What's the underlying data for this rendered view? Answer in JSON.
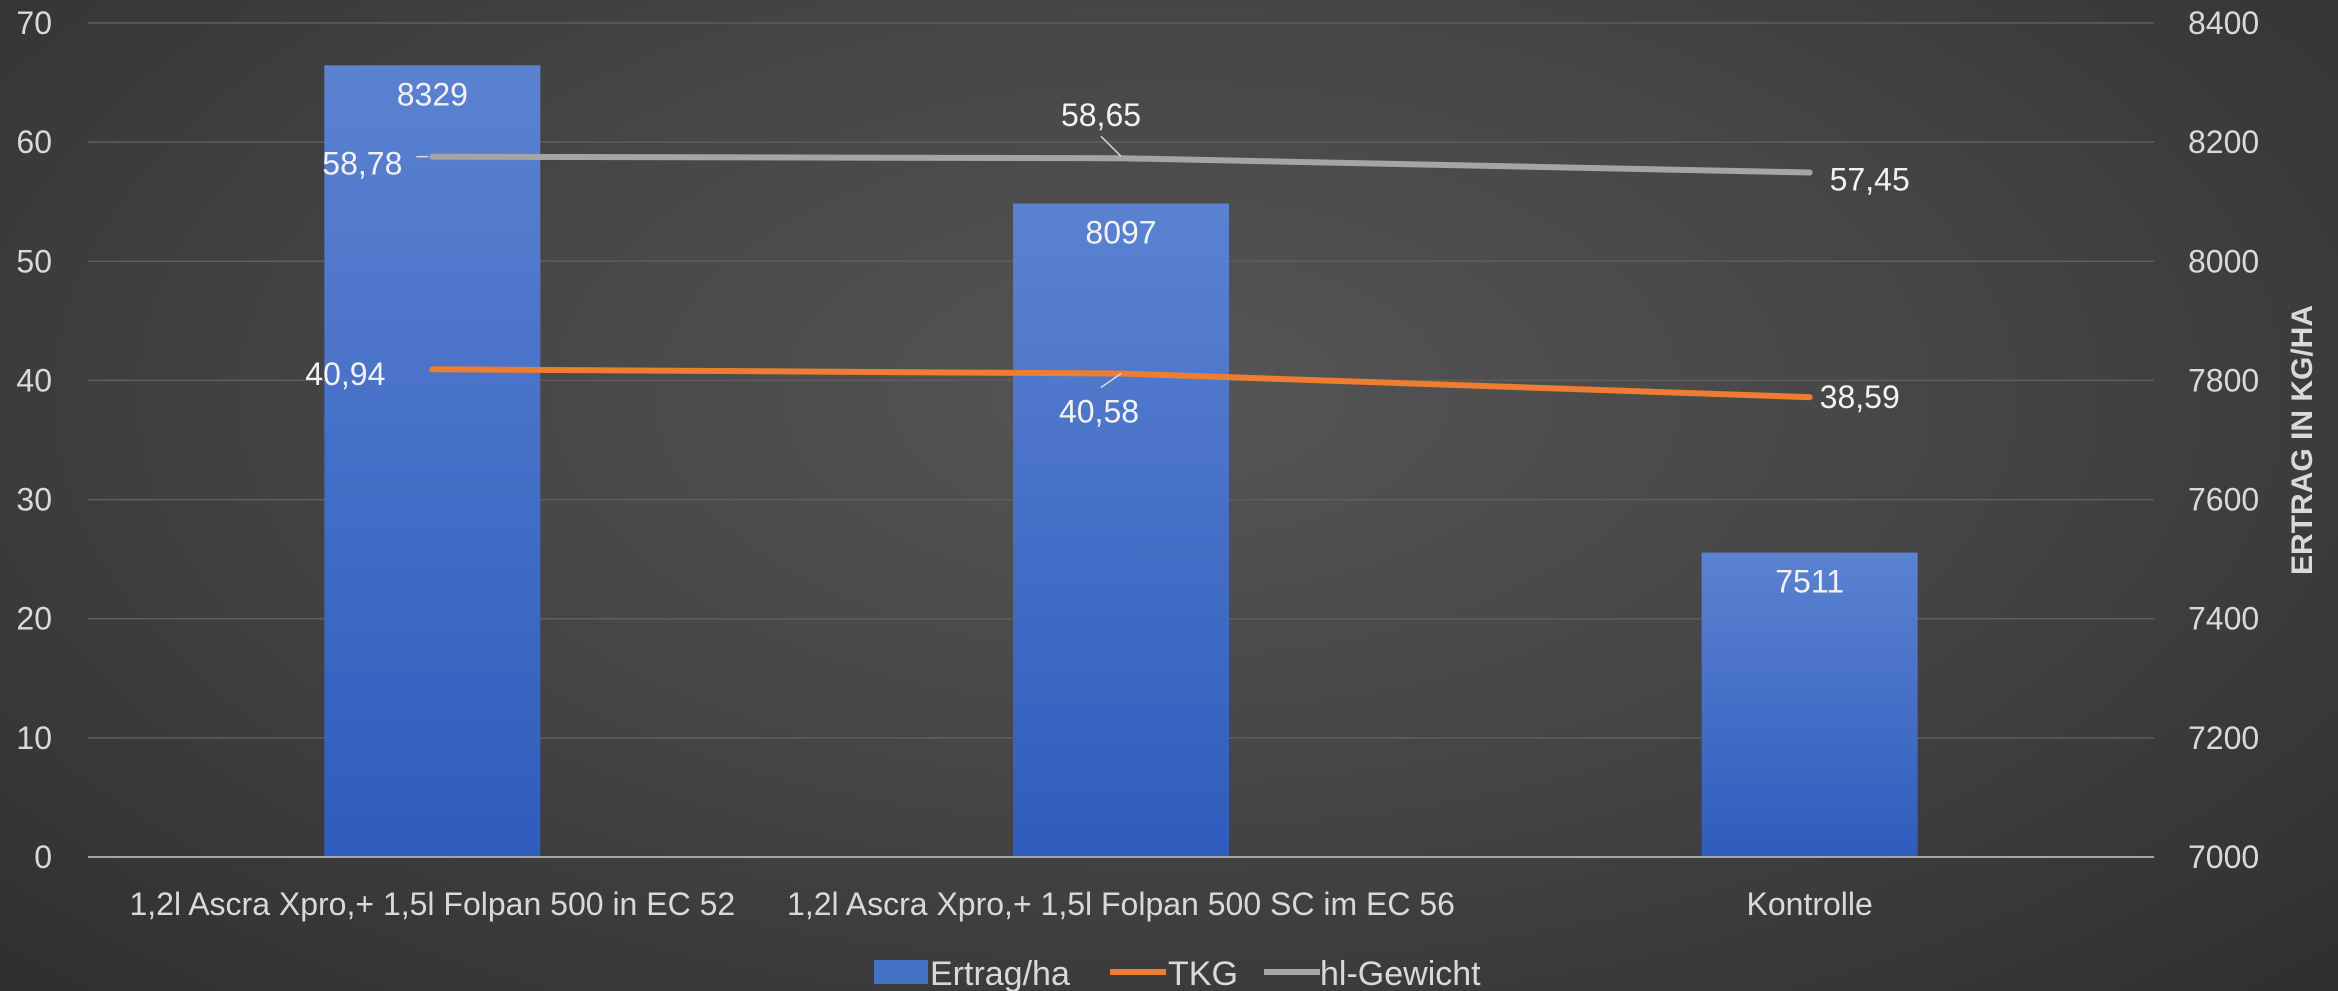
{
  "chart_data": {
    "type": "bar",
    "title": "",
    "categories": [
      "1,2l Ascra Xpro,+ 1,5l Folpan 500 in EC 52",
      "1,2l Ascra Xpro,+ 1,5l Folpan 500 SC im EC 56",
      "Kontrolle"
    ],
    "series": [
      {
        "name": "Ertrag/ha",
        "type": "bar",
        "axis": "right",
        "color": "#4472c4",
        "values": [
          8329,
          8097,
          7511
        ],
        "labels": [
          "8329",
          "8097",
          "7511"
        ]
      },
      {
        "name": "TKG",
        "type": "line",
        "axis": "left",
        "color": "#ed7d31",
        "values": [
          40.94,
          40.58,
          38.59
        ],
        "labels": [
          "40,94",
          "40,58",
          "38,59"
        ]
      },
      {
        "name": "hl-Gewicht",
        "type": "line",
        "axis": "left",
        "color": "#a5a5a5",
        "values": [
          58.78,
          58.65,
          57.45
        ],
        "labels": [
          "58,78",
          "58,65",
          "57,45"
        ]
      }
    ],
    "left_axis": {
      "label": "",
      "ylim": [
        0,
        70
      ],
      "ticks": [
        "0",
        "10",
        "20",
        "30",
        "40",
        "50",
        "60",
        "70"
      ]
    },
    "right_axis": {
      "label": "ERTRAG IN KG/HA",
      "ylim": [
        7000,
        8400
      ],
      "ticks": [
        "7000",
        "7200",
        "7400",
        "7600",
        "7800",
        "8000",
        "8200",
        "8400"
      ]
    },
    "grid": true,
    "legend": "bottom"
  }
}
